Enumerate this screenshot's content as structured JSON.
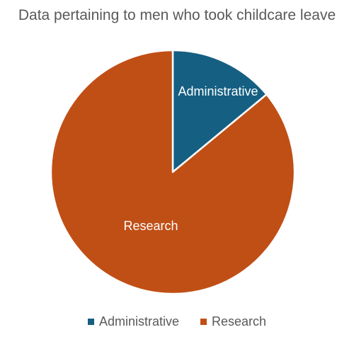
{
  "chart_data": {
    "type": "pie",
    "title": "Data pertaining to men who took childcare leave",
    "categories": [
      "Administrative",
      "Research"
    ],
    "values": [
      14,
      86
    ],
    "colors": [
      "#155F82",
      "#C04F15"
    ],
    "slice_labels": [
      "Administrative",
      "Research"
    ],
    "legend": {
      "position": "bottom",
      "entries": [
        "Administrative",
        "Research"
      ]
    }
  }
}
